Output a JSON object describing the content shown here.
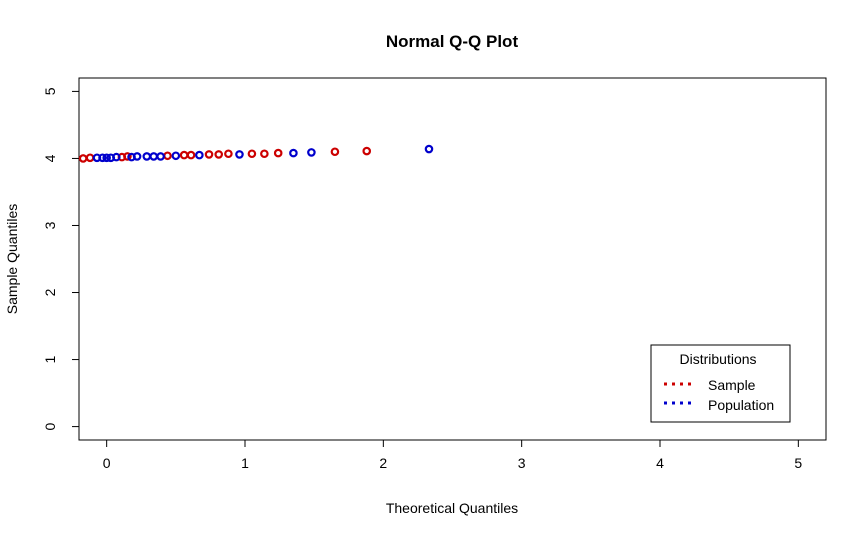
{
  "chart_data": {
    "type": "scatter",
    "title": "Normal Q-Q Plot",
    "xlabel": "Theoretical Quantiles",
    "ylabel": "Sample Quantiles",
    "xlim": [
      -0.2,
      5.2
    ],
    "ylim": [
      -0.2,
      5.2
    ],
    "xticks": [
      "0",
      "1",
      "2",
      "3",
      "4",
      "5"
    ],
    "yticks": [
      "0",
      "1",
      "2",
      "3",
      "4",
      "5"
    ],
    "grid": false,
    "legend": {
      "title": "Distributions",
      "placement": "bottom-right",
      "entries": [
        "Sample",
        "Population"
      ]
    },
    "series": [
      {
        "name": "Sample",
        "color": "#cc0000",
        "x": [
          -0.17,
          -0.12,
          0.11,
          0.15,
          0.44,
          0.56,
          0.61,
          0.74,
          0.81,
          0.88,
          1.05,
          1.14,
          1.24,
          1.65,
          1.88
        ],
        "y": [
          4.0,
          4.01,
          4.02,
          4.03,
          4.04,
          4.05,
          4.05,
          4.06,
          4.06,
          4.07,
          4.07,
          4.07,
          4.08,
          4.1,
          4.11
        ]
      },
      {
        "name": "Population",
        "color": "#0000cc",
        "x": [
          -0.07,
          -0.03,
          0.0,
          0.03,
          0.07,
          0.18,
          0.22,
          0.29,
          0.34,
          0.39,
          0.5,
          0.67,
          0.96,
          1.35,
          1.48,
          2.33
        ],
        "y": [
          4.01,
          4.01,
          4.01,
          4.01,
          4.02,
          4.02,
          4.03,
          4.03,
          4.03,
          4.03,
          4.04,
          4.05,
          4.06,
          4.08,
          4.09,
          4.14
        ]
      }
    ]
  }
}
